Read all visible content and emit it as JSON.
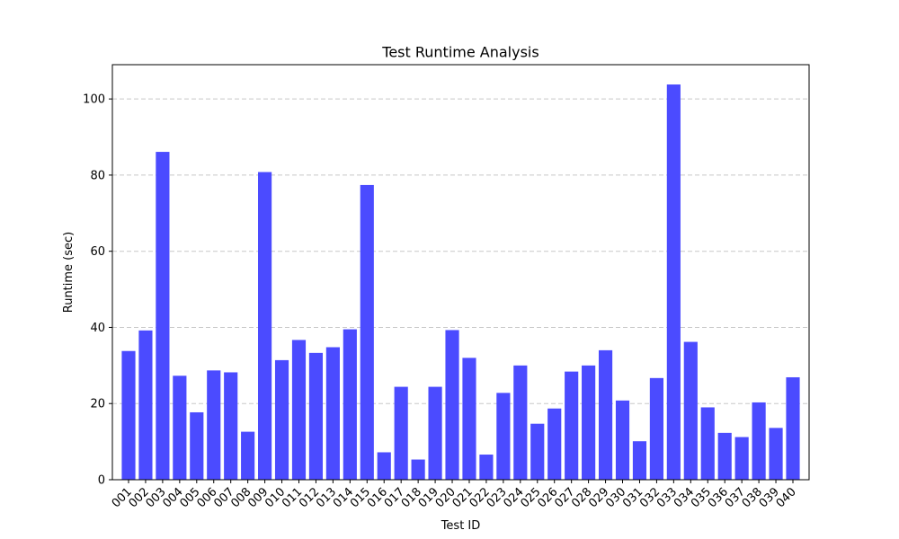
{
  "chart_data": {
    "type": "bar",
    "title": "Test Runtime Analysis",
    "xlabel": "Test ID",
    "ylabel": "Runtime (sec)",
    "ylim": [
      0,
      109
    ],
    "yticks": [
      0,
      20,
      40,
      60,
      80,
      100
    ],
    "grid": "y-dashed",
    "bar_color": "#4b4bff",
    "categories": [
      "001",
      "002",
      "003",
      "004",
      "005",
      "006",
      "007",
      "008",
      "009",
      "010",
      "011",
      "012",
      "013",
      "014",
      "015",
      "016",
      "017",
      "018",
      "019",
      "020",
      "021",
      "022",
      "023",
      "024",
      "025",
      "026",
      "027",
      "028",
      "029",
      "030",
      "031",
      "032",
      "033",
      "034",
      "035",
      "036",
      "037",
      "038",
      "039",
      "040"
    ],
    "values": [
      33.8,
      39.2,
      86.1,
      27.3,
      17.7,
      28.7,
      28.2,
      12.6,
      80.8,
      31.4,
      36.7,
      33.3,
      34.8,
      39.5,
      77.4,
      7.2,
      24.4,
      5.3,
      24.4,
      39.3,
      32.0,
      6.6,
      22.8,
      30.0,
      14.7,
      18.7,
      28.4,
      30.0,
      34.0,
      20.8,
      10.1,
      26.7,
      103.8,
      36.2,
      19.0,
      12.3,
      11.2,
      20.3,
      13.6,
      26.9
    ]
  }
}
